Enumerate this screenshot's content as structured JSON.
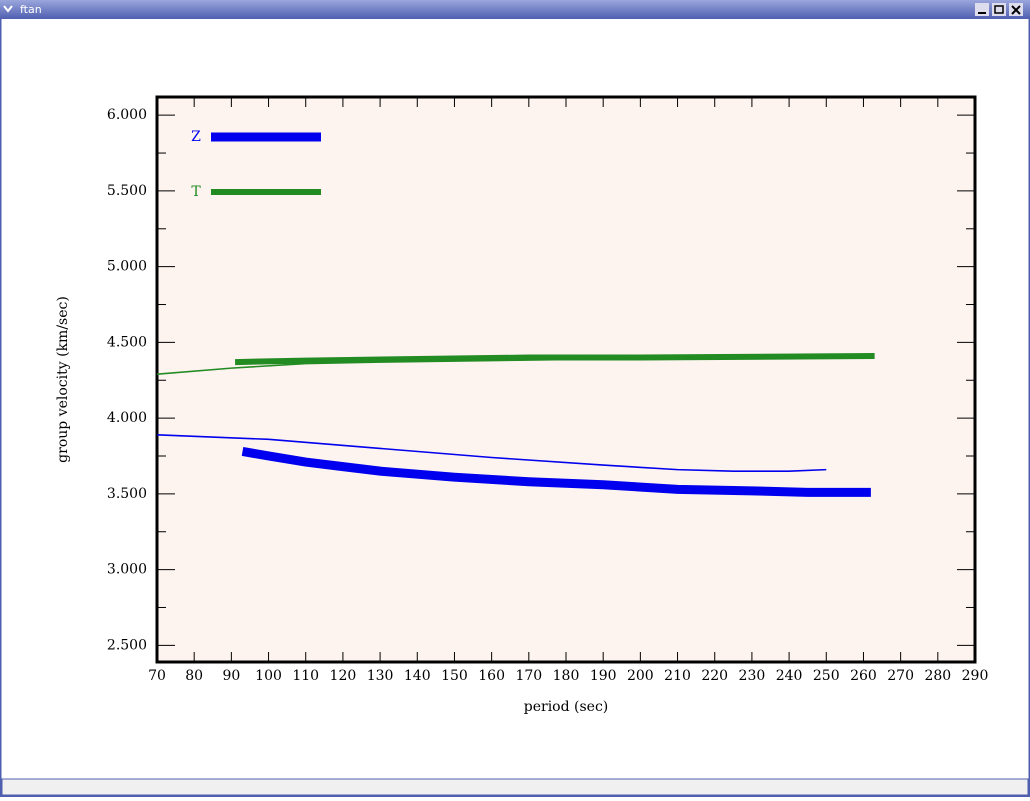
{
  "window": {
    "title": "ftan"
  },
  "chart_data": {
    "type": "line",
    "xlabel": "period (sec)",
    "ylabel": "group velocity (km/sec)",
    "xlim": [
      70,
      290
    ],
    "ylim": [
      2.39,
      6.12
    ],
    "xticks": [
      70,
      80,
      90,
      100,
      110,
      120,
      130,
      140,
      150,
      160,
      170,
      180,
      190,
      200,
      210,
      220,
      230,
      240,
      250,
      260,
      270,
      280,
      290
    ],
    "yticks": [
      {
        "value": 2.5,
        "label": "2.500"
      },
      {
        "value": 3,
        "label": "3.000"
      },
      {
        "value": 3.5,
        "label": "3.500"
      },
      {
        "value": 4,
        "label": "4.000"
      },
      {
        "value": 4.5,
        "label": "4.500"
      },
      {
        "value": 5,
        "label": "5.000"
      },
      {
        "value": 5.5,
        "label": "5.500"
      },
      {
        "value": 6,
        "label": "6.000"
      }
    ],
    "yminorticks": [
      2.75,
      3.25,
      3.75,
      4.25,
      4.75,
      5.25,
      5.75
    ],
    "background": "#fdf3ef",
    "series": [
      {
        "name": "Z",
        "color": "#0000ee",
        "width": 9,
        "x": [
          93,
          100,
          110,
          120,
          130,
          150,
          170,
          190,
          210,
          230,
          245,
          262
        ],
        "values": [
          3.78,
          3.75,
          3.71,
          3.68,
          3.65,
          3.61,
          3.58,
          3.56,
          3.53,
          3.52,
          3.51,
          3.51
        ]
      },
      {
        "name": "T",
        "color": "#228b22",
        "width": 6,
        "x": [
          91,
          110,
          140,
          170,
          200,
          263
        ],
        "values": [
          4.37,
          4.38,
          4.39,
          4.4,
          4.4,
          4.41
        ]
      },
      {
        "color": "#0000ee",
        "width": 1.6,
        "x": [
          70,
          100,
          130,
          160,
          190,
          210,
          225,
          240,
          250
        ],
        "values": [
          3.89,
          3.86,
          3.8,
          3.74,
          3.69,
          3.66,
          3.65,
          3.65,
          3.66
        ]
      },
      {
        "color": "#228b22",
        "width": 1.6,
        "x": [
          70,
          90,
          110,
          130,
          160,
          190,
          220,
          250
        ],
        "values": [
          4.29,
          4.33,
          4.36,
          4.37,
          4.38,
          4.39,
          4.4,
          4.4
        ]
      }
    ]
  }
}
